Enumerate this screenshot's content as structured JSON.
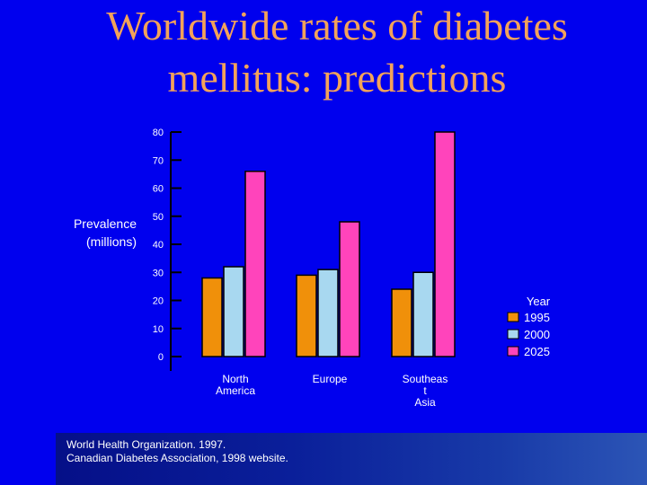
{
  "slide": {
    "title_line1": "Worldwide rates of diabetes",
    "title_line2": "mellitus: predictions",
    "source_line1": "World Health Organization. 1997.",
    "source_line2": "Canadian Diabetes Association, 1998 website."
  },
  "chart_data": {
    "type": "bar",
    "title": "Worldwide rates of diabetes mellitus: predictions",
    "ylabel_line1": "Prevalence",
    "ylabel_line2": "(millions)",
    "ylabel": "Prevalence (millions)",
    "xlabel": "",
    "ylim": [
      0,
      80
    ],
    "yticks": [
      0,
      10,
      20,
      30,
      40,
      50,
      60,
      70,
      80
    ],
    "categories": [
      {
        "lines": [
          "North",
          "America"
        ]
      },
      {
        "lines": [
          "Europe"
        ]
      },
      {
        "lines": [
          "Southeas",
          "t",
          "Asia"
        ]
      }
    ],
    "series": [
      {
        "name": "1995",
        "color": "#F0900A",
        "values": [
          28,
          29,
          24
        ]
      },
      {
        "name": "2000",
        "color": "#A8D8F0",
        "values": [
          32,
          31,
          30
        ]
      },
      {
        "name": "2025",
        "color": "#FF44BB",
        "values": [
          66,
          48,
          80
        ]
      }
    ],
    "legend_title": "Year",
    "legend_position": "right"
  }
}
